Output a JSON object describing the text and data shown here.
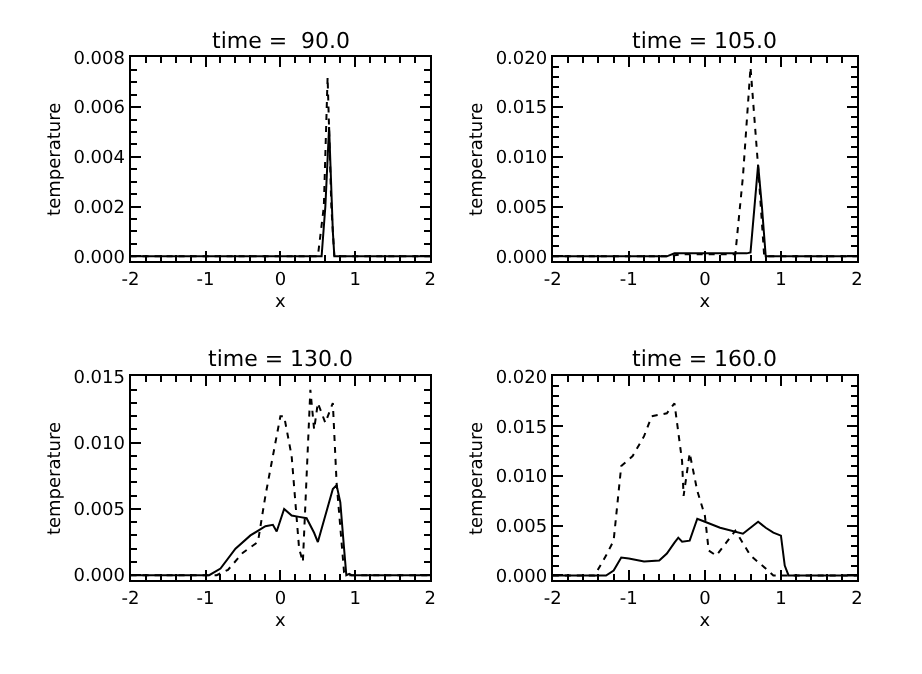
{
  "chart_data": [
    {
      "type": "line",
      "title": "time =  90.0",
      "xlabel": "x",
      "ylabel": "temperature",
      "xlim": [
        -2,
        2
      ],
      "xticks": [
        -2,
        -1,
        0,
        1,
        2
      ],
      "ylim": [
        -0.0002,
        0.008
      ],
      "yticks": [
        {
          "value": 0,
          "label": "0.000"
        },
        {
          "value": 0.002,
          "label": "0.002"
        },
        {
          "value": 0.004,
          "label": "0.004"
        },
        {
          "value": 0.006,
          "label": "0.006"
        },
        {
          "value": 0.008,
          "label": "0.008"
        }
      ],
      "series": [
        {
          "color": "#000000",
          "line_style": "solid",
          "x": [
            -2,
            -0.5,
            0,
            0.4,
            0.55,
            0.6,
            0.65,
            0.7,
            0.72,
            2
          ],
          "values": [
            0,
            0,
            0,
            0,
            0,
            0.002,
            0.0052,
            0.001,
            0,
            0
          ]
        },
        {
          "color": "#000000",
          "line_style": "dotted",
          "x": [
            -2,
            0.5,
            0.58,
            0.63,
            0.68,
            0.72,
            2
          ],
          "values": [
            0,
            0,
            0.002,
            0.0072,
            0.002,
            0,
            0
          ]
        }
      ]
    },
    {
      "type": "line",
      "title": "time = 105.0",
      "xlabel": "x",
      "ylabel": "temperature",
      "xlim": [
        -2,
        2
      ],
      "xticks": [
        -2,
        -1,
        0,
        1,
        2
      ],
      "ylim": [
        -0.0005,
        0.02
      ],
      "yticks": [
        {
          "value": 0,
          "label": "0.000"
        },
        {
          "value": 0.005,
          "label": "0.005"
        },
        {
          "value": 0.01,
          "label": "0.010"
        },
        {
          "value": 0.015,
          "label": "0.015"
        },
        {
          "value": 0.02,
          "label": "0.020"
        }
      ],
      "series": [
        {
          "color": "#000000",
          "line_style": "solid",
          "x": [
            -2,
            -0.5,
            -0.4,
            0.55,
            0.6,
            0.7,
            0.75,
            0.8,
            2
          ],
          "values": [
            0,
            0,
            0.0003,
            0.0003,
            0.0004,
            0.0092,
            0.005,
            0,
            0
          ]
        },
        {
          "color": "#000000",
          "line_style": "dotted",
          "x": [
            -2,
            -0.5,
            -0.3,
            0.4,
            0.5,
            0.6,
            0.7,
            0.78,
            2
          ],
          "values": [
            0,
            0,
            0.0002,
            0.0002,
            0.008,
            0.019,
            0.009,
            0,
            0
          ]
        }
      ]
    },
    {
      "type": "line",
      "title": "time = 130.0",
      "xlabel": "x",
      "ylabel": "temperature",
      "xlim": [
        -2,
        2
      ],
      "xticks": [
        -2,
        -1,
        0,
        1,
        2
      ],
      "ylim": [
        -0.0004,
        0.015
      ],
      "yticks": [
        {
          "value": 0,
          "label": "0.000"
        },
        {
          "value": 0.005,
          "label": "0.005"
        },
        {
          "value": 0.01,
          "label": "0.010"
        },
        {
          "value": 0.015,
          "label": "0.015"
        }
      ],
      "series": [
        {
          "color": "#000000",
          "line_style": "solid",
          "x": [
            -2,
            -0.95,
            -0.8,
            -0.6,
            -0.4,
            -0.2,
            -0.1,
            -0.05,
            0.05,
            0.15,
            0.25,
            0.35,
            0.45,
            0.5,
            0.6,
            0.7,
            0.75,
            0.8,
            0.85,
            0.88,
            0.92,
            0.95,
            2
          ],
          "values": [
            0,
            0,
            0.0005,
            0.002,
            0.003,
            0.0037,
            0.0038,
            0.0033,
            0.005,
            0.0045,
            0.0044,
            0.0043,
            0.0032,
            0.0025,
            0.0045,
            0.0065,
            0.0068,
            0.0055,
            0.002,
            0,
            0.0001,
            0,
            0
          ]
        },
        {
          "color": "#000000",
          "line_style": "dotted",
          "x": [
            -2,
            -0.85,
            -0.7,
            -0.5,
            -0.3,
            -0.2,
            -0.1,
            0.0,
            0.05,
            0.15,
            0.25,
            0.3,
            0.4,
            0.45,
            0.5,
            0.6,
            0.7,
            0.75,
            0.85,
            0.9,
            2
          ],
          "values": [
            0,
            0,
            0.0004,
            0.0017,
            0.0025,
            0.006,
            0.009,
            0.012,
            0.012,
            0.009,
            0.002,
            0.001,
            0.014,
            0.011,
            0.013,
            0.0115,
            0.013,
            0.007,
            0.0002,
            0,
            0
          ]
        }
      ]
    },
    {
      "type": "line",
      "title": "time = 160.0",
      "xlabel": "x",
      "ylabel": "temperature",
      "xlim": [
        -2,
        2
      ],
      "xticks": [
        -2,
        -1,
        0,
        1,
        2
      ],
      "ylim": [
        -0.0005,
        0.02
      ],
      "yticks": [
        {
          "value": 0,
          "label": "0.000"
        },
        {
          "value": 0.005,
          "label": "0.005"
        },
        {
          "value": 0.01,
          "label": "0.010"
        },
        {
          "value": 0.015,
          "label": "0.015"
        },
        {
          "value": 0.02,
          "label": "0.020"
        }
      ],
      "series": [
        {
          "color": "#000000",
          "line_style": "solid",
          "x": [
            -2,
            -1.3,
            -1.2,
            -1.1,
            -1.0,
            -0.8,
            -0.6,
            -0.5,
            -0.4,
            -0.35,
            -0.3,
            -0.2,
            -0.1,
            0.0,
            0.2,
            0.5,
            0.7,
            0.8,
            0.9,
            1.0,
            1.05,
            1.1,
            2
          ],
          "values": [
            0,
            0,
            0.0005,
            0.0018,
            0.0017,
            0.0014,
            0.0015,
            0.0022,
            0.0033,
            0.0038,
            0.0034,
            0.0035,
            0.0057,
            0.0054,
            0.0048,
            0.0042,
            0.0054,
            0.0048,
            0.0043,
            0.004,
            0.001,
            0,
            0
          ]
        },
        {
          "color": "#000000",
          "line_style": "dotted",
          "x": [
            -2,
            -1.45,
            -1.3,
            -1.2,
            -1.1,
            -0.95,
            -0.8,
            -0.7,
            -0.5,
            -0.4,
            -0.3,
            -0.28,
            -0.2,
            -0.1,
            0.0,
            0.05,
            0.15,
            0.25,
            0.4,
            0.6,
            0.8,
            0.9,
            2
          ],
          "values": [
            0,
            0,
            0.002,
            0.0035,
            0.011,
            0.012,
            0.014,
            0.016,
            0.0163,
            0.0173,
            0.0115,
            0.008,
            0.0123,
            0.0085,
            0.006,
            0.0025,
            0.002,
            0.003,
            0.0045,
            0.002,
            0.0007,
            0,
            0
          ]
        }
      ]
    }
  ]
}
